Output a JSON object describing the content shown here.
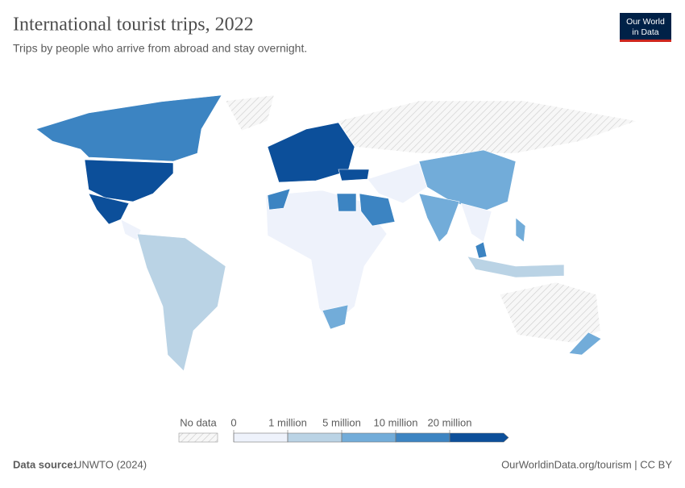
{
  "header": {
    "title": "International tourist trips, 2022",
    "subtitle": "Trips by people who arrive from abroad and stay overnight.",
    "logo": [
      "Our World",
      "in Data"
    ]
  },
  "legend": {
    "no_data_label": "No data",
    "ticks": [
      0,
      {
        "value": 1000000,
        "label": "1 million"
      },
      {
        "value": 5000000,
        "label": "5 million"
      },
      {
        "value": 10000000,
        "label": "10 million"
      },
      {
        "value": 20000000,
        "label": "20 million"
      }
    ],
    "colors": [
      "#eef2fb",
      "#bad3e5",
      "#72acd9",
      "#3c84c2",
      "#0c4f9a"
    ]
  },
  "footer": {
    "source_label": "Data source:",
    "source": "UNWTO (2024)",
    "url": "OurWorldinData.org/tourism | CC BY"
  }
}
